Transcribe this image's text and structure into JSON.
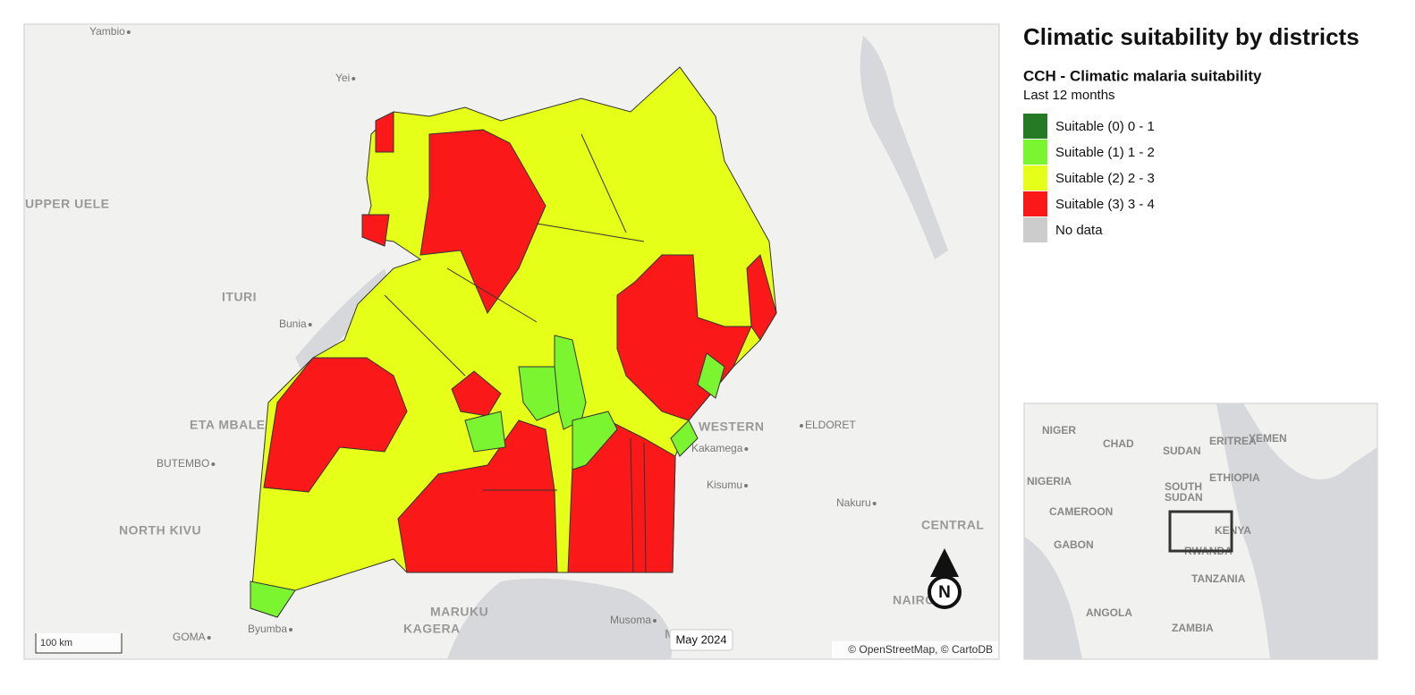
{
  "title": "Climatic suitability by districts",
  "indicator": "CCH - Climatic malaria suitability",
  "period": "Last 12 months",
  "legend": [
    {
      "label": "Suitable (0) 0 - 1",
      "color": "#267a26"
    },
    {
      "label": "Suitable (1) 1 - 2",
      "color": "#7cf531"
    },
    {
      "label": "Suitable (2) 2 - 3",
      "color": "#e6ff19"
    },
    {
      "label": "Suitable (3) 3 - 4",
      "color": "#fb1818"
    },
    {
      "label": "No data",
      "color": "#cccccc"
    }
  ],
  "map_labels": [
    "Yambio",
    "Yei",
    "UPPER UELE",
    "ITURI",
    "Bunia",
    "ETA MBALE",
    "BUTEMBO",
    "NORTH KIVU",
    "GOMA",
    "Byumba",
    "MARUKU",
    "KAGERA",
    "Musoma",
    "MAR",
    "WESTERN",
    "ELDORET",
    "Kakamega",
    "Kisumu",
    "Nakuru",
    "CENTRAL",
    "NAIRO"
  ],
  "scale": "100 km",
  "date": "May 2024",
  "attribution": "© OpenStreetMap, © CartoDB",
  "compass": "N",
  "inset_labels": [
    "NIGER",
    "CHAD",
    "SUDAN",
    "ERITREA",
    "YEMEN",
    "NIGERIA",
    "ETHIOPIA",
    "SOUTH",
    "SUDAN",
    "CAMEROON",
    "KENYA",
    "GABON",
    "RWANDA",
    "TANZANIA",
    "ANGOLA",
    "ZAMBIA"
  ]
}
